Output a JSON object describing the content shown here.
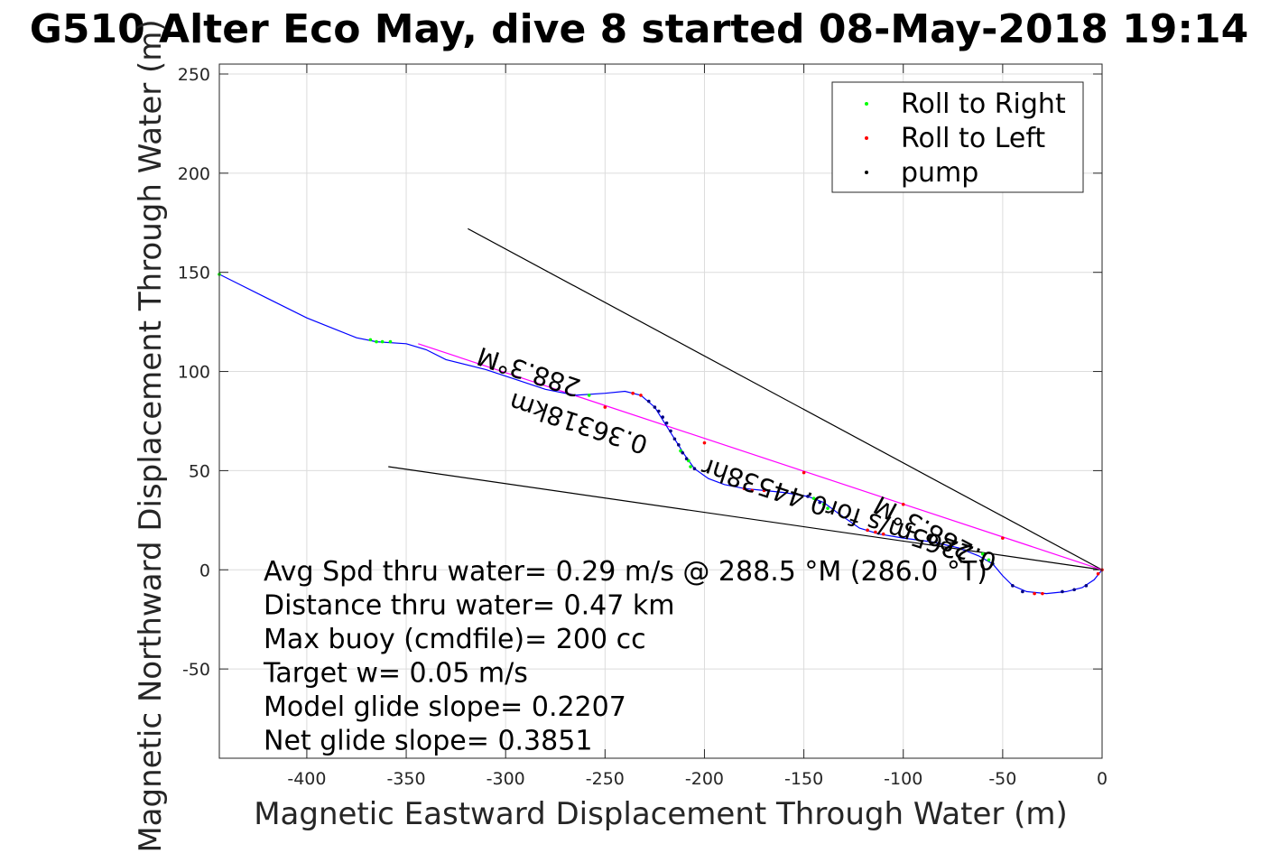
{
  "chart_data": {
    "type": "scatter",
    "title": "G510 Alter Eco May, dive 8 started 08-May-2018 19:14",
    "xlabel": "Magnetic Eastward Displacement Through Water (m)",
    "ylabel": "Magnetic Northward Displacement Through Water (m)",
    "xlim": [
      -444,
      0
    ],
    "ylim": [
      -95,
      255
    ],
    "xticks": [
      -400,
      -350,
      -300,
      -250,
      -200,
      -150,
      -100,
      -50,
      0
    ],
    "yticks": [
      -50,
      0,
      50,
      100,
      150,
      200,
      250
    ],
    "grid": true,
    "legend_position": "top-right",
    "legend": [
      {
        "label": "Roll to Right",
        "color": "#00ff00"
      },
      {
        "label": "Roll to Left",
        "color": "#ff0000"
      },
      {
        "label": "pump",
        "color": "#000000"
      }
    ],
    "track": [
      [
        -444,
        149
      ],
      [
        -420,
        137
      ],
      [
        -400,
        127
      ],
      [
        -385,
        121
      ],
      [
        -375,
        117
      ],
      [
        -365,
        115
      ],
      [
        -350,
        114
      ],
      [
        -340,
        111
      ],
      [
        -330,
        106
      ],
      [
        -310,
        101
      ],
      [
        -295,
        96
      ],
      [
        -280,
        91
      ],
      [
        -265,
        88
      ],
      [
        -250,
        89
      ],
      [
        -240,
        90
      ],
      [
        -232,
        88
      ],
      [
        -225,
        82
      ],
      [
        -220,
        74
      ],
      [
        -215,
        66
      ],
      [
        -210,
        58
      ],
      [
        -205,
        51
      ],
      [
        -198,
        46
      ],
      [
        -190,
        43
      ],
      [
        -180,
        41
      ],
      [
        -170,
        40
      ],
      [
        -160,
        39
      ],
      [
        -148,
        37
      ],
      [
        -140,
        34
      ],
      [
        -132,
        28
      ],
      [
        -122,
        21
      ],
      [
        -112,
        18
      ],
      [
        -100,
        16
      ],
      [
        -85,
        14
      ],
      [
        -72,
        11
      ],
      [
        -62,
        7
      ],
      [
        -55,
        3
      ],
      [
        -50,
        -3
      ],
      [
        -45,
        -8
      ],
      [
        -38,
        -11
      ],
      [
        -28,
        -12
      ],
      [
        -18,
        -11
      ],
      [
        -10,
        -9
      ],
      [
        -4,
        -5
      ],
      [
        0,
        0
      ]
    ],
    "straight_track": [
      [
        -344,
        114
      ],
      [
        0,
        0
      ]
    ],
    "lines": [
      [
        [
          -319,
          172
        ],
        [
          0,
          0
        ]
      ],
      [
        [
          -359,
          52
        ],
        [
          0,
          0
        ]
      ]
    ],
    "roll_right_points": [
      [
        -444,
        149
      ],
      [
        -368,
        116
      ],
      [
        -365,
        115
      ],
      [
        -362,
        115
      ],
      [
        -358,
        115
      ],
      [
        -258,
        88
      ],
      [
        -212,
        60
      ],
      [
        -208,
        55
      ],
      [
        -207,
        52
      ],
      [
        -145,
        36
      ],
      [
        -140,
        33
      ],
      [
        -138,
        31
      ],
      [
        -60,
        8
      ],
      [
        -57,
        5
      ],
      [
        -55,
        3
      ]
    ],
    "roll_left_points": [
      [
        -236,
        89
      ],
      [
        -232,
        88
      ],
      [
        -180,
        41
      ],
      [
        -176,
        40
      ],
      [
        -170,
        40
      ],
      [
        -118,
        20
      ],
      [
        -114,
        19
      ],
      [
        -110,
        18
      ],
      [
        -34,
        -12
      ],
      [
        -30,
        -12
      ],
      [
        -2,
        -2
      ],
      [
        0,
        0
      ],
      [
        -250,
        82
      ],
      [
        -200,
        64
      ],
      [
        -150,
        49
      ],
      [
        -100,
        33
      ],
      [
        -50,
        16
      ]
    ],
    "pump_points": [
      [
        -228,
        85
      ],
      [
        -225,
        82
      ],
      [
        -223,
        80
      ],
      [
        -221,
        77
      ],
      [
        -219,
        74
      ],
      [
        -217,
        70
      ],
      [
        -215,
        66
      ],
      [
        -213,
        63
      ],
      [
        -211,
        59
      ],
      [
        -209,
        56
      ],
      [
        -205,
        51
      ],
      [
        -148,
        37
      ],
      [
        -142,
        34
      ],
      [
        -55,
        3
      ],
      [
        -45,
        -8
      ],
      [
        -40,
        -11
      ],
      [
        -20,
        -11
      ],
      [
        -14,
        -10
      ],
      [
        -8,
        -8
      ]
    ],
    "annotations": [
      {
        "text": "288.3°M",
        "x": -287,
        "y": 104,
        "rotation": 198.3
      },
      {
        "text": "0.36318km",
        "x": -262,
        "y": 78,
        "rotation": 198.3
      },
      {
        "text": "0.2265m/s for0.44538hr",
        "x": -126,
        "y": 32,
        "rotation": 198.3
      },
      {
        "text": "288.3°M",
        "x": -88,
        "y": 25,
        "rotation": 208
      }
    ],
    "stats": [
      "Avg Spd thru water=  0.29 m/s @ 288.5 °M (286.0 °T)",
      "Distance thru water=  0.47 km",
      "Max buoy (cmdfile)= 200 cc",
      "Target w= 0.05 m/s",
      "Model glide slope= 0.2207",
      "Net glide slope= 0.3851"
    ],
    "colors": {
      "track": "#0000ff",
      "straight_track": "#ff00ff",
      "lines": "#000000",
      "grid": "#dcdcdc"
    }
  }
}
